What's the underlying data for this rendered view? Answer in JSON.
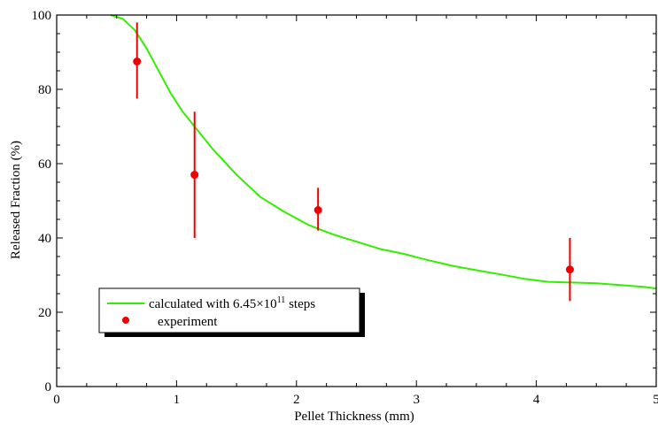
{
  "chart_data": {
    "type": "scatter",
    "xlabel": "Pellet Thickness (mm)",
    "ylabel": "Released Fraction (%)",
    "xlim": [
      0,
      5
    ],
    "ylim": [
      0,
      100
    ],
    "x_ticks": [
      0,
      1,
      2,
      3,
      4,
      5
    ],
    "y_ticks": [
      0,
      20,
      40,
      60,
      80,
      100
    ],
    "x_tick_labels": [
      "0",
      "1",
      "2",
      "3",
      "4",
      "5"
    ],
    "y_tick_labels": [
      "0",
      "20",
      "40",
      "60",
      "80",
      "100"
    ],
    "grid": false,
    "legend_position": "bottom-left",
    "series": [
      {
        "name": "calculated with 6.45×10¹¹ steps",
        "name_parts": {
          "prefix": "calculated with 6.45×10",
          "sup": "11",
          "suffix": " steps"
        },
        "kind": "line",
        "color": "#33ee00",
        "x": [
          0.45,
          0.55,
          0.65,
          0.75,
          0.85,
          0.95,
          1.05,
          1.15,
          1.3,
          1.5,
          1.7,
          1.9,
          2.1,
          2.3,
          2.5,
          2.7,
          2.9,
          3.0,
          3.1,
          3.3,
          3.5,
          3.7,
          3.9,
          4.1,
          4.3,
          4.5,
          4.7,
          4.9,
          5.0
        ],
        "y": [
          100,
          99,
          96,
          91,
          85,
          79,
          74,
          70,
          64,
          57,
          51,
          47,
          43.5,
          41,
          39,
          37,
          35.7,
          34.8,
          34,
          32.5,
          31.3,
          30.2,
          29,
          28.2,
          28,
          27.8,
          27.3,
          26.8,
          26.4
        ]
      },
      {
        "name": "experiment",
        "kind": "points",
        "color": "#ee0000",
        "x": [
          0.67,
          1.15,
          2.18,
          4.28
        ],
        "y": [
          87.5,
          57,
          47.5,
          31.5
        ],
        "y_err_low": [
          77.5,
          40,
          42,
          23
        ],
        "y_err_high": [
          98,
          74,
          53.5,
          40
        ]
      }
    ]
  }
}
